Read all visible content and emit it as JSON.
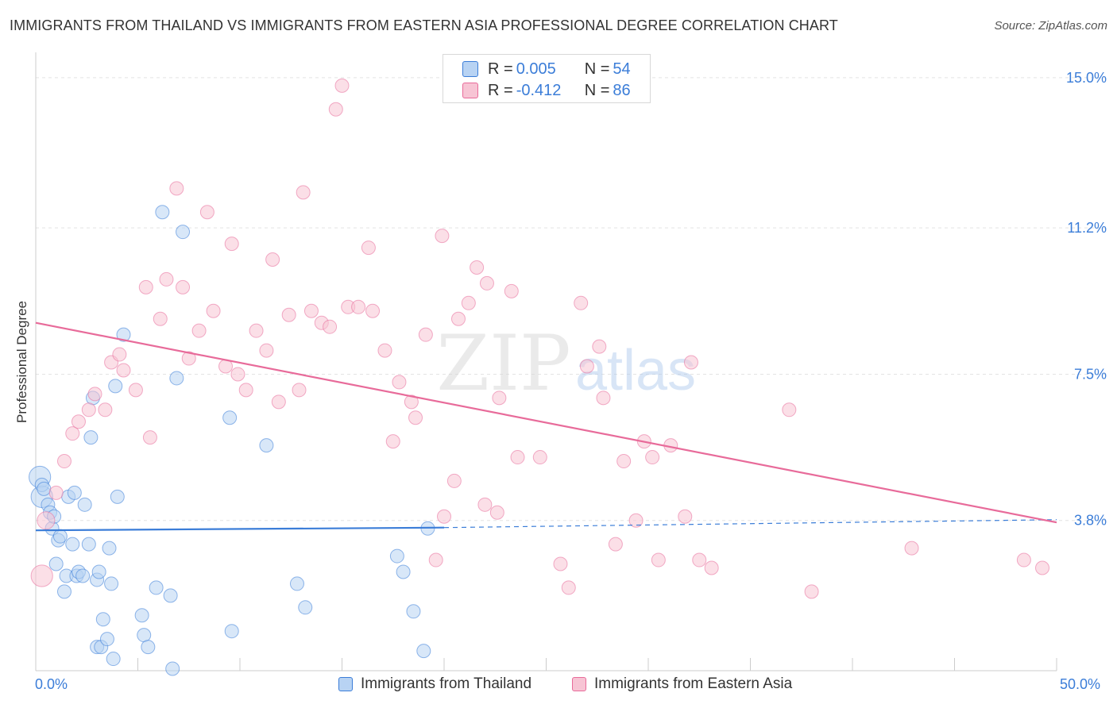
{
  "title": "IMMIGRANTS FROM THAILAND VS IMMIGRANTS FROM EASTERN ASIA PROFESSIONAL DEGREE CORRELATION CHART",
  "source": "Source: ZipAtlas.com",
  "watermark": {
    "zip": "ZIP",
    "atlas": "atlas"
  },
  "stats": [
    {
      "r_label": "R = ",
      "r_value": "0.005",
      "n_label": "N = ",
      "n_value": "54",
      "color": "#3b7dd8",
      "fill": "#b8d3f3"
    },
    {
      "r_label": "R = ",
      "r_value": "-0.412",
      "n_label": "N = ",
      "n_value": "86",
      "color": "#e86b9a",
      "fill": "#f7c4d4"
    }
  ],
  "chart_data": {
    "type": "scatter",
    "title": "IMMIGRANTS FROM THAILAND VS IMMIGRANTS FROM EASTERN ASIA PROFESSIONAL DEGREE CORRELATION CHART",
    "xlabel": "",
    "ylabel": "Professional Degree",
    "xlim": [
      0,
      50
    ],
    "ylim": [
      0,
      15.4
    ],
    "x_tick_labels": [
      "0.0%",
      "50.0%"
    ],
    "y_ticks": [
      3.8,
      7.5,
      11.2,
      15.0
    ],
    "y_tick_labels": [
      "3.8%",
      "7.5%",
      "11.2%",
      "15.0%"
    ],
    "grid": true,
    "legend_position": "bottom",
    "series": [
      {
        "name": "Immigrants from Thailand",
        "color": "#3b7dd8",
        "fill": "#b8d3f3",
        "trend": {
          "x": [
            0,
            20
          ],
          "y": [
            3.55,
            3.62
          ],
          "dashed_to": [
            50,
            3.82
          ]
        },
        "points": [
          [
            0.2,
            4.9,
            1.6
          ],
          [
            0.3,
            4.4,
            1.6
          ],
          [
            0.3,
            4.7,
            1.0
          ],
          [
            0.4,
            4.6,
            1.0
          ],
          [
            0.6,
            4.2,
            1.0
          ],
          [
            0.7,
            4.0,
            1.0
          ],
          [
            0.8,
            3.6,
            1.0
          ],
          [
            0.9,
            3.9,
            1.0
          ],
          [
            1.0,
            2.7,
            1.0
          ],
          [
            1.1,
            3.3,
            1.0
          ],
          [
            1.2,
            3.4,
            1.0
          ],
          [
            1.4,
            2.0,
            1.0
          ],
          [
            1.5,
            2.4,
            1.0
          ],
          [
            1.6,
            4.4,
            1.0
          ],
          [
            1.8,
            3.2,
            1.0
          ],
          [
            1.9,
            4.5,
            1.0
          ],
          [
            2.0,
            2.4,
            1.0
          ],
          [
            2.1,
            2.5,
            1.0
          ],
          [
            2.3,
            2.4,
            1.0
          ],
          [
            2.4,
            4.2,
            1.0
          ],
          [
            2.6,
            3.2,
            1.0
          ],
          [
            2.7,
            5.9,
            1.0
          ],
          [
            2.8,
            6.9,
            1.0
          ],
          [
            3.0,
            2.3,
            1.0
          ],
          [
            3.0,
            0.6,
            1.0
          ],
          [
            3.1,
            2.5,
            1.0
          ],
          [
            3.2,
            0.6,
            1.0
          ],
          [
            3.3,
            1.3,
            1.0
          ],
          [
            3.5,
            0.8,
            1.0
          ],
          [
            3.6,
            3.1,
            1.0
          ],
          [
            3.7,
            2.2,
            1.0
          ],
          [
            3.8,
            0.3,
            1.0
          ],
          [
            3.9,
            7.2,
            1.0
          ],
          [
            4.0,
            4.4,
            1.0
          ],
          [
            4.3,
            8.5,
            1.0
          ],
          [
            5.2,
            1.4,
            1.0
          ],
          [
            5.3,
            0.9,
            1.0
          ],
          [
            5.5,
            0.6,
            1.0
          ],
          [
            5.9,
            2.1,
            1.0
          ],
          [
            6.2,
            11.6,
            1.0
          ],
          [
            6.6,
            1.9,
            1.0
          ],
          [
            6.7,
            0.05,
            1.0
          ],
          [
            6.9,
            7.4,
            1.0
          ],
          [
            7.2,
            11.1,
            1.0
          ],
          [
            9.5,
            6.4,
            1.0
          ],
          [
            9.6,
            1.0,
            1.0
          ],
          [
            11.3,
            5.7,
            1.0
          ],
          [
            12.8,
            2.2,
            1.0
          ],
          [
            13.2,
            1.6,
            1.0
          ],
          [
            17.7,
            2.9,
            1.0
          ],
          [
            18.0,
            2.5,
            1.0
          ],
          [
            18.5,
            1.5,
            1.0
          ],
          [
            19.0,
            0.5,
            1.0
          ],
          [
            19.2,
            3.6,
            1.0
          ]
        ]
      },
      {
        "name": "Immigrants from Eastern Asia",
        "color": "#e86b9a",
        "fill": "#f7c4d4",
        "trend": {
          "x": [
            0,
            50
          ],
          "y": [
            8.8,
            3.75
          ]
        },
        "points": [
          [
            0.3,
            2.4,
            1.6
          ],
          [
            0.5,
            3.8,
            1.3
          ],
          [
            1.0,
            4.5,
            1.0
          ],
          [
            1.4,
            5.3,
            1.0
          ],
          [
            1.8,
            6.0,
            1.0
          ],
          [
            2.1,
            6.3,
            1.0
          ],
          [
            2.6,
            6.6,
            1.0
          ],
          [
            2.9,
            7.0,
            1.0
          ],
          [
            3.4,
            6.6,
            1.0
          ],
          [
            3.7,
            7.8,
            1.0
          ],
          [
            4.1,
            8.0,
            1.0
          ],
          [
            4.3,
            7.6,
            1.0
          ],
          [
            4.9,
            7.1,
            1.0
          ],
          [
            5.4,
            9.7,
            1.0
          ],
          [
            5.6,
            5.9,
            1.0
          ],
          [
            6.1,
            8.9,
            1.0
          ],
          [
            6.4,
            9.9,
            1.0
          ],
          [
            6.9,
            12.2,
            1.0
          ],
          [
            7.2,
            9.7,
            1.0
          ],
          [
            7.5,
            7.9,
            1.0
          ],
          [
            8.0,
            8.6,
            1.0
          ],
          [
            8.4,
            11.6,
            1.0
          ],
          [
            8.7,
            9.1,
            1.0
          ],
          [
            9.3,
            7.7,
            1.0
          ],
          [
            9.6,
            10.8,
            1.0
          ],
          [
            9.9,
            7.5,
            1.0
          ],
          [
            10.3,
            7.1,
            1.0
          ],
          [
            10.8,
            8.6,
            1.0
          ],
          [
            11.3,
            8.1,
            1.0
          ],
          [
            11.6,
            10.4,
            1.0
          ],
          [
            11.9,
            6.8,
            1.0
          ],
          [
            12.4,
            9.0,
            1.0
          ],
          [
            12.9,
            7.1,
            1.0
          ],
          [
            13.1,
            12.1,
            1.0
          ],
          [
            13.5,
            9.1,
            1.0
          ],
          [
            14.0,
            8.8,
            1.0
          ],
          [
            14.4,
            8.7,
            1.0
          ],
          [
            14.7,
            14.2,
            1.0
          ],
          [
            15.0,
            14.8,
            1.0
          ],
          [
            15.3,
            9.2,
            1.0
          ],
          [
            15.8,
            9.2,
            1.0
          ],
          [
            16.3,
            10.7,
            1.0
          ],
          [
            16.5,
            9.1,
            1.0
          ],
          [
            17.1,
            8.1,
            1.0
          ],
          [
            17.5,
            5.8,
            1.0
          ],
          [
            17.8,
            7.3,
            1.0
          ],
          [
            18.4,
            6.8,
            1.0
          ],
          [
            18.6,
            6.4,
            1.0
          ],
          [
            19.1,
            8.5,
            1.0
          ],
          [
            19.6,
            2.8,
            1.0
          ],
          [
            19.9,
            11.0,
            1.0
          ],
          [
            20.0,
            3.9,
            1.0
          ],
          [
            20.5,
            4.8,
            1.0
          ],
          [
            20.7,
            8.9,
            1.0
          ],
          [
            21.2,
            9.3,
            1.0
          ],
          [
            21.6,
            10.2,
            1.0
          ],
          [
            22.0,
            4.2,
            1.0
          ],
          [
            22.1,
            9.8,
            1.0
          ],
          [
            22.6,
            4.0,
            1.0
          ],
          [
            22.7,
            6.9,
            1.0
          ],
          [
            23.3,
            9.6,
            1.0
          ],
          [
            23.6,
            5.4,
            1.0
          ],
          [
            24.7,
            5.4,
            1.0
          ],
          [
            25.7,
            2.7,
            1.0
          ],
          [
            26.1,
            2.1,
            1.0
          ],
          [
            26.7,
            9.3,
            1.0
          ],
          [
            27.0,
            7.7,
            1.0
          ],
          [
            27.6,
            8.2,
            1.0
          ],
          [
            27.8,
            6.9,
            1.0
          ],
          [
            28.4,
            3.2,
            1.0
          ],
          [
            28.8,
            5.3,
            1.0
          ],
          [
            29.4,
            3.8,
            1.0
          ],
          [
            29.8,
            5.8,
            1.0
          ],
          [
            30.2,
            5.4,
            1.0
          ],
          [
            30.5,
            2.8,
            1.0
          ],
          [
            31.1,
            5.7,
            1.0
          ],
          [
            31.8,
            3.9,
            1.0
          ],
          [
            32.1,
            7.8,
            1.0
          ],
          [
            32.5,
            2.8,
            1.0
          ],
          [
            33.1,
            2.6,
            1.0
          ],
          [
            36.9,
            6.6,
            1.0
          ],
          [
            38.0,
            2.0,
            1.0
          ],
          [
            42.9,
            3.1,
            1.0
          ],
          [
            48.4,
            2.8,
            1.0
          ],
          [
            49.3,
            2.6,
            1.0
          ]
        ]
      }
    ]
  }
}
